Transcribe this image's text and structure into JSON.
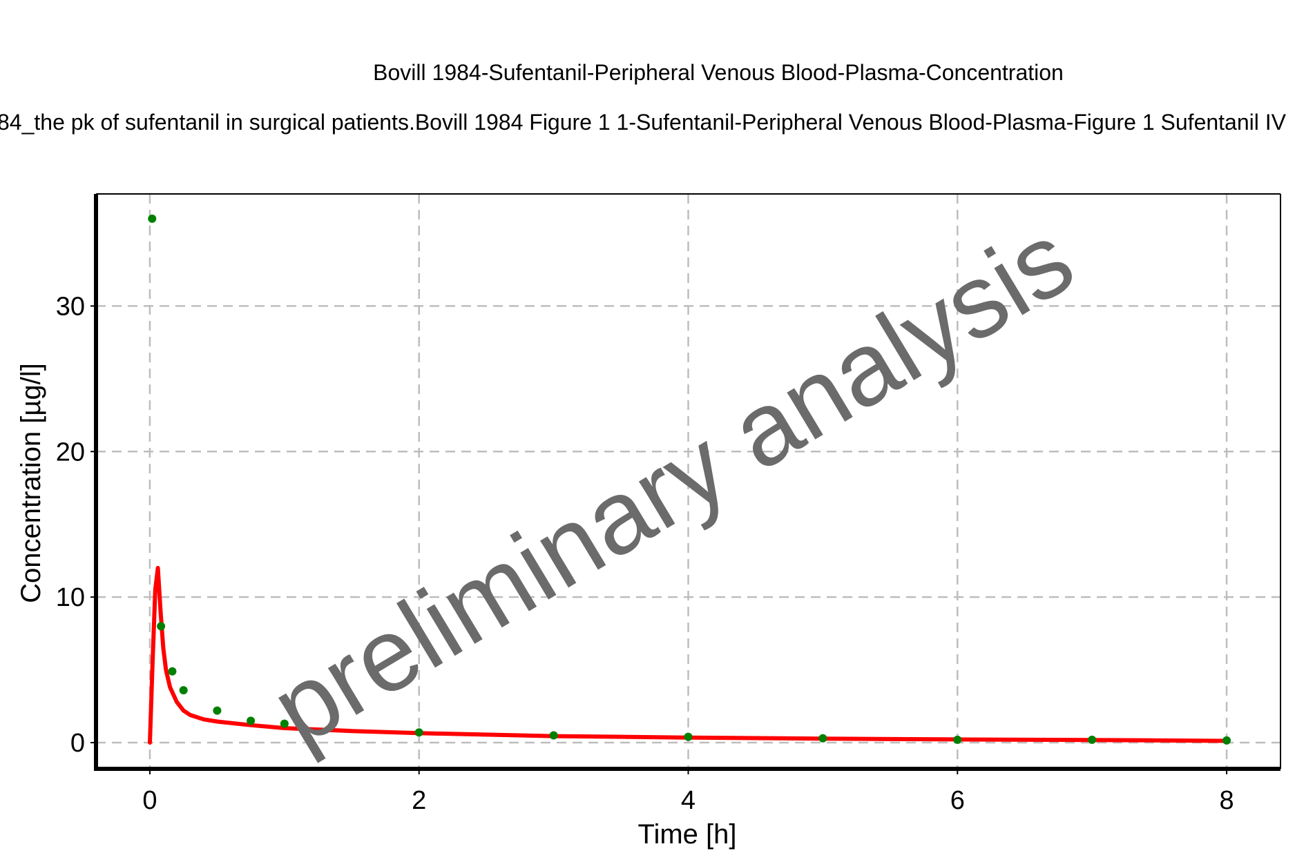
{
  "chart_data": {
    "type": "line",
    "title": "Bovill 1984-Sufentanil-Peripheral Venous Blood-Plasma-Concentration",
    "subtitle": "84_the pk of sufentanil in surgical patients.Bovill 1984 Figure 1 1-Sufentanil-Peripheral Venous Blood-Plasma-Figure 1 Sufentanil IV",
    "xlabel": "Time [h]",
    "ylabel": "Concentration [µg/l]",
    "watermark": "preliminary analysis",
    "xlim": [
      -0.4,
      8.4
    ],
    "ylim": [
      -1.8,
      37.7
    ],
    "xticks": [
      "0",
      "2",
      "4",
      "6",
      "8"
    ],
    "yticks": [
      "0",
      "10",
      "20",
      "30"
    ],
    "grid": true,
    "colors": {
      "simulation": "#ff0000",
      "observed": "#008000",
      "grid": "#bdbdbd",
      "watermark": "#6b6b6b"
    },
    "series": [
      {
        "kind": "line",
        "x": [
          0,
          0.02,
          0.04,
          0.06,
          0.08,
          0.1,
          0.12,
          0.15,
          0.2,
          0.25,
          0.3,
          0.4,
          0.5,
          0.75,
          1,
          1.5,
          2,
          3,
          4,
          5,
          6,
          7,
          8
        ],
        "y": [
          0,
          5.5,
          10.5,
          12.0,
          9.0,
          6.5,
          5.0,
          3.8,
          2.8,
          2.2,
          1.9,
          1.6,
          1.45,
          1.2,
          1.0,
          0.8,
          0.65,
          0.45,
          0.35,
          0.27,
          0.22,
          0.18,
          0.12
        ]
      },
      {
        "kind": "scatter",
        "x": [
          0.017,
          0.083,
          0.167,
          0.25,
          0.5,
          0.75,
          1,
          2,
          3,
          4,
          5,
          6,
          7,
          8
        ],
        "y": [
          36.0,
          8.0,
          4.9,
          3.6,
          2.2,
          1.5,
          1.3,
          0.7,
          0.5,
          0.4,
          0.3,
          0.2,
          0.2,
          0.15
        ]
      }
    ]
  }
}
